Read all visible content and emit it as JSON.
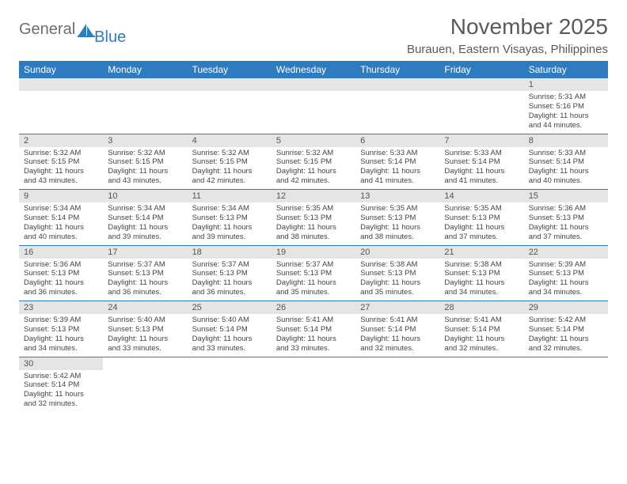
{
  "logo": {
    "word1": "General",
    "word2": "Blue"
  },
  "title": "November 2025",
  "location": "Burauen, Eastern Visayas, Philippines",
  "colors": {
    "header_bg": "#2f7bbf",
    "header_text": "#ffffff",
    "daynum_bg": "#e5e5e5",
    "rule": "#2f7bbf",
    "text": "#444444",
    "title_text": "#5a5a5a"
  },
  "weekdays": [
    "Sunday",
    "Monday",
    "Tuesday",
    "Wednesday",
    "Thursday",
    "Friday",
    "Saturday"
  ],
  "layout": {
    "columns": 7,
    "rows": 6,
    "cell_font_size_pt": 7,
    "header_font_size_pt": 9,
    "title_font_size_pt": 21
  },
  "weeks": [
    [
      {
        "n": "",
        "lines": []
      },
      {
        "n": "",
        "lines": []
      },
      {
        "n": "",
        "lines": []
      },
      {
        "n": "",
        "lines": []
      },
      {
        "n": "",
        "lines": []
      },
      {
        "n": "",
        "lines": []
      },
      {
        "n": "1",
        "lines": [
          "Sunrise: 5:31 AM",
          "Sunset: 5:16 PM",
          "Daylight: 11 hours and 44 minutes."
        ]
      }
    ],
    [
      {
        "n": "2",
        "lines": [
          "Sunrise: 5:32 AM",
          "Sunset: 5:15 PM",
          "Daylight: 11 hours and 43 minutes."
        ]
      },
      {
        "n": "3",
        "lines": [
          "Sunrise: 5:32 AM",
          "Sunset: 5:15 PM",
          "Daylight: 11 hours and 43 minutes."
        ]
      },
      {
        "n": "4",
        "lines": [
          "Sunrise: 5:32 AM",
          "Sunset: 5:15 PM",
          "Daylight: 11 hours and 42 minutes."
        ]
      },
      {
        "n": "5",
        "lines": [
          "Sunrise: 5:32 AM",
          "Sunset: 5:15 PM",
          "Daylight: 11 hours and 42 minutes."
        ]
      },
      {
        "n": "6",
        "lines": [
          "Sunrise: 5:33 AM",
          "Sunset: 5:14 PM",
          "Daylight: 11 hours and 41 minutes."
        ]
      },
      {
        "n": "7",
        "lines": [
          "Sunrise: 5:33 AM",
          "Sunset: 5:14 PM",
          "Daylight: 11 hours and 41 minutes."
        ]
      },
      {
        "n": "8",
        "lines": [
          "Sunrise: 5:33 AM",
          "Sunset: 5:14 PM",
          "Daylight: 11 hours and 40 minutes."
        ]
      }
    ],
    [
      {
        "n": "9",
        "lines": [
          "Sunrise: 5:34 AM",
          "Sunset: 5:14 PM",
          "Daylight: 11 hours and 40 minutes."
        ]
      },
      {
        "n": "10",
        "lines": [
          "Sunrise: 5:34 AM",
          "Sunset: 5:14 PM",
          "Daylight: 11 hours and 39 minutes."
        ]
      },
      {
        "n": "11",
        "lines": [
          "Sunrise: 5:34 AM",
          "Sunset: 5:13 PM",
          "Daylight: 11 hours and 39 minutes."
        ]
      },
      {
        "n": "12",
        "lines": [
          "Sunrise: 5:35 AM",
          "Sunset: 5:13 PM",
          "Daylight: 11 hours and 38 minutes."
        ]
      },
      {
        "n": "13",
        "lines": [
          "Sunrise: 5:35 AM",
          "Sunset: 5:13 PM",
          "Daylight: 11 hours and 38 minutes."
        ]
      },
      {
        "n": "14",
        "lines": [
          "Sunrise: 5:35 AM",
          "Sunset: 5:13 PM",
          "Daylight: 11 hours and 37 minutes."
        ]
      },
      {
        "n": "15",
        "lines": [
          "Sunrise: 5:36 AM",
          "Sunset: 5:13 PM",
          "Daylight: 11 hours and 37 minutes."
        ]
      }
    ],
    [
      {
        "n": "16",
        "lines": [
          "Sunrise: 5:36 AM",
          "Sunset: 5:13 PM",
          "Daylight: 11 hours and 36 minutes."
        ]
      },
      {
        "n": "17",
        "lines": [
          "Sunrise: 5:37 AM",
          "Sunset: 5:13 PM",
          "Daylight: 11 hours and 36 minutes."
        ]
      },
      {
        "n": "18",
        "lines": [
          "Sunrise: 5:37 AM",
          "Sunset: 5:13 PM",
          "Daylight: 11 hours and 36 minutes."
        ]
      },
      {
        "n": "19",
        "lines": [
          "Sunrise: 5:37 AM",
          "Sunset: 5:13 PM",
          "Daylight: 11 hours and 35 minutes."
        ]
      },
      {
        "n": "20",
        "lines": [
          "Sunrise: 5:38 AM",
          "Sunset: 5:13 PM",
          "Daylight: 11 hours and 35 minutes."
        ]
      },
      {
        "n": "21",
        "lines": [
          "Sunrise: 5:38 AM",
          "Sunset: 5:13 PM",
          "Daylight: 11 hours and 34 minutes."
        ]
      },
      {
        "n": "22",
        "lines": [
          "Sunrise: 5:39 AM",
          "Sunset: 5:13 PM",
          "Daylight: 11 hours and 34 minutes."
        ]
      }
    ],
    [
      {
        "n": "23",
        "lines": [
          "Sunrise: 5:39 AM",
          "Sunset: 5:13 PM",
          "Daylight: 11 hours and 34 minutes."
        ]
      },
      {
        "n": "24",
        "lines": [
          "Sunrise: 5:40 AM",
          "Sunset: 5:13 PM",
          "Daylight: 11 hours and 33 minutes."
        ]
      },
      {
        "n": "25",
        "lines": [
          "Sunrise: 5:40 AM",
          "Sunset: 5:14 PM",
          "Daylight: 11 hours and 33 minutes."
        ]
      },
      {
        "n": "26",
        "lines": [
          "Sunrise: 5:41 AM",
          "Sunset: 5:14 PM",
          "Daylight: 11 hours and 33 minutes."
        ]
      },
      {
        "n": "27",
        "lines": [
          "Sunrise: 5:41 AM",
          "Sunset: 5:14 PM",
          "Daylight: 11 hours and 32 minutes."
        ]
      },
      {
        "n": "28",
        "lines": [
          "Sunrise: 5:41 AM",
          "Sunset: 5:14 PM",
          "Daylight: 11 hours and 32 minutes."
        ]
      },
      {
        "n": "29",
        "lines": [
          "Sunrise: 5:42 AM",
          "Sunset: 5:14 PM",
          "Daylight: 11 hours and 32 minutes."
        ]
      }
    ],
    [
      {
        "n": "30",
        "lines": [
          "Sunrise: 5:42 AM",
          "Sunset: 5:14 PM",
          "Daylight: 11 hours and 32 minutes."
        ]
      },
      {
        "n": "",
        "lines": []
      },
      {
        "n": "",
        "lines": []
      },
      {
        "n": "",
        "lines": []
      },
      {
        "n": "",
        "lines": []
      },
      {
        "n": "",
        "lines": []
      },
      {
        "n": "",
        "lines": []
      }
    ]
  ]
}
